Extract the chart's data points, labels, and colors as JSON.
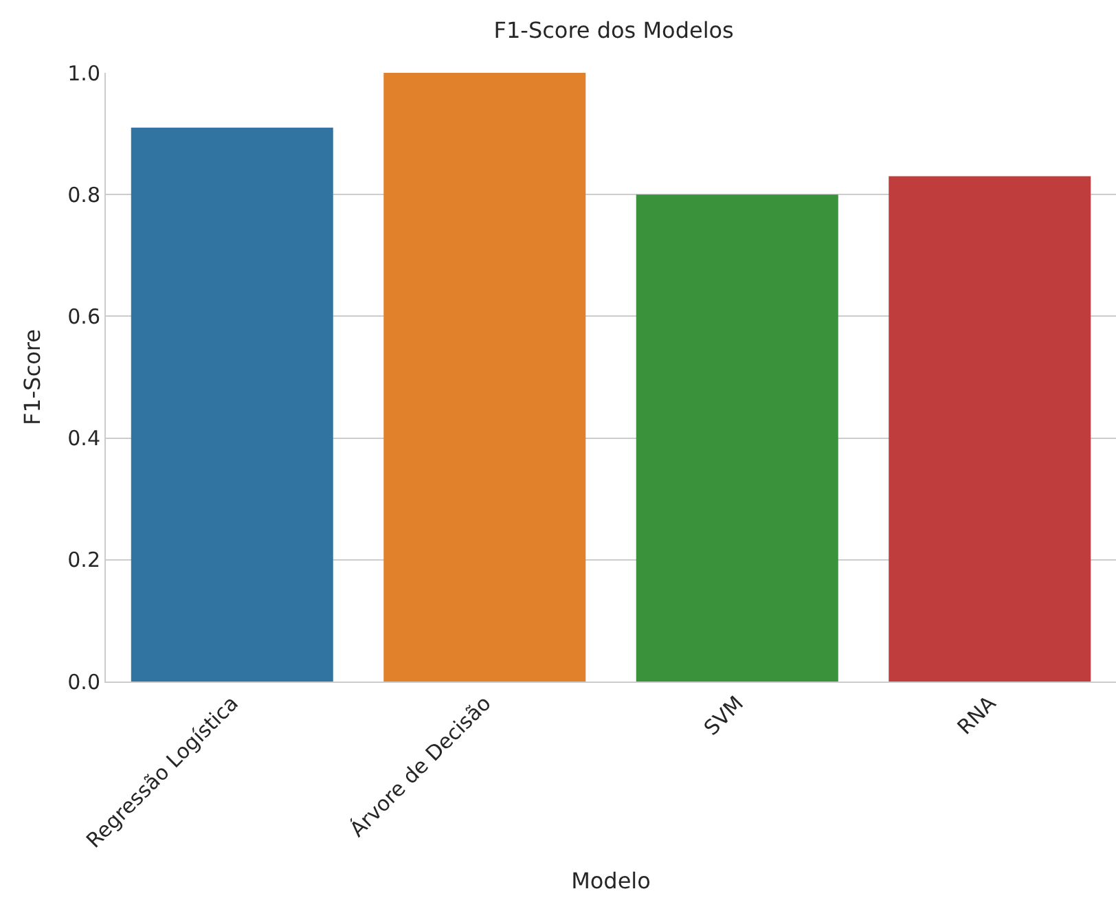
{
  "chart_data": {
    "type": "bar",
    "title": "F1-Score dos Modelos",
    "xlabel": "Modelo",
    "ylabel": "F1-Score",
    "categories": [
      "Regressão Logística",
      "Árvore de Decisão",
      "SVM",
      "RNA"
    ],
    "values": [
      0.91,
      1.0,
      0.8,
      0.83
    ],
    "colors": [
      "#3274a1",
      "#e1812c",
      "#3a923a",
      "#c03d3e"
    ],
    "ylim": [
      0,
      1.0
    ],
    "yticks": [
      {
        "value": 0,
        "label": "0.0"
      },
      {
        "value": 0.2,
        "label": "0.2"
      },
      {
        "value": 0.4,
        "label": "0.4"
      },
      {
        "value": 0.6,
        "label": "0.6"
      },
      {
        "value": 0.8,
        "label": "0.8"
      },
      {
        "value": 1.0,
        "label": "1.0"
      }
    ],
    "grid": "y"
  }
}
